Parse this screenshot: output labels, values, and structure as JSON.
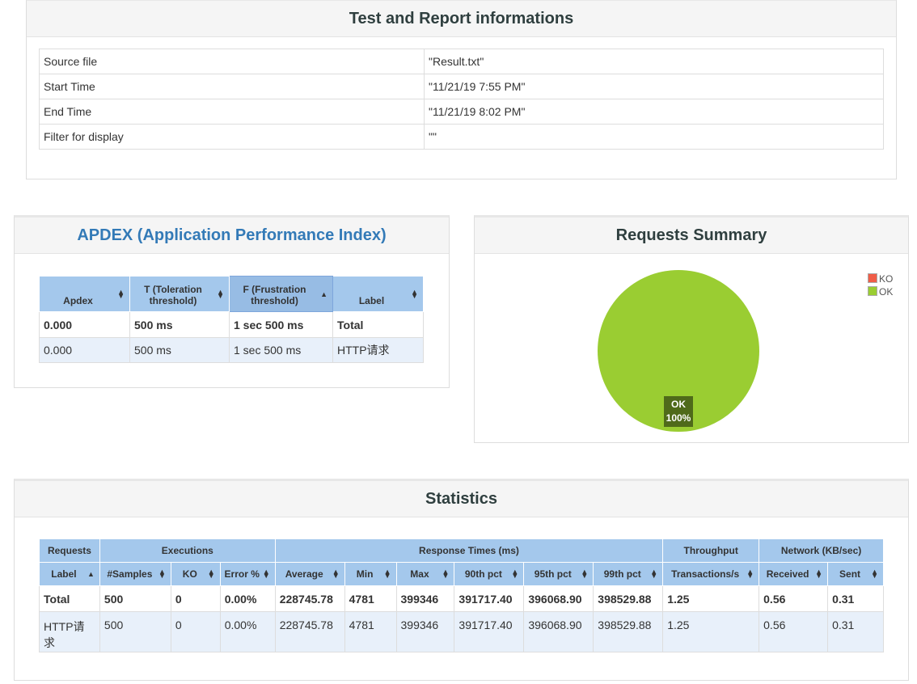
{
  "test_info": {
    "title": "Test and Report informations",
    "rows": [
      {
        "key": "Source file",
        "value": "\"Result.txt\""
      },
      {
        "key": "Start Time",
        "value": "\"11/21/19 7:55 PM\""
      },
      {
        "key": "End Time",
        "value": "\"11/21/19 8:02 PM\""
      },
      {
        "key": "Filter for display",
        "value": "\"\""
      }
    ]
  },
  "apdex": {
    "title": "APDEX (Application Performance Index)",
    "headers": [
      "Apdex",
      "T (Toleration threshold)",
      "F (Frustration threshold)",
      "Label"
    ],
    "total": {
      "apdex": "0.000",
      "t": "500 ms",
      "f": "1 sec 500 ms",
      "label": "Total"
    },
    "rows": [
      {
        "apdex": "0.000",
        "t": "500 ms",
        "f": "1 sec 500 ms",
        "label": "HTTP请求"
      }
    ]
  },
  "requests_summary": {
    "title": "Requests Summary",
    "legend": [
      {
        "label": "KO",
        "color": "#f05d48"
      },
      {
        "label": "OK",
        "color": "#9acd32"
      }
    ],
    "slice_label": "OK",
    "slice_pct": "100%"
  },
  "chart_data": {
    "type": "pie",
    "title": "Requests Summary",
    "slices": [
      {
        "label": "KO",
        "value": 0,
        "color": "#f05d48"
      },
      {
        "label": "OK",
        "value": 100,
        "color": "#9acd32"
      }
    ],
    "legend": "top-right"
  },
  "statistics": {
    "title": "Statistics",
    "groups": [
      "Requests",
      "Executions",
      "Response Times (ms)",
      "Throughput",
      "Network (KB/sec)"
    ],
    "columns": [
      "Label",
      "#Samples",
      "KO",
      "Error %",
      "Average",
      "Min",
      "Max",
      "90th pct",
      "95th pct",
      "99th pct",
      "Transactions/s",
      "Received",
      "Sent"
    ],
    "total": [
      "Total",
      "500",
      "0",
      "0.00%",
      "228745.78",
      "4781",
      "399346",
      "391717.40",
      "396068.90",
      "398529.88",
      "1.25",
      "0.56",
      "0.31"
    ],
    "rows": [
      [
        "HTTP请求",
        "500",
        "0",
        "0.00%",
        "228745.78",
        "4781",
        "399346",
        "391717.40",
        "396068.90",
        "398529.88",
        "1.25",
        "0.56",
        "0.31"
      ]
    ]
  },
  "colors": {
    "header_blue": "#a4c8ec",
    "row_blue": "#e8f0fa",
    "ok_green": "#9acd32",
    "ko_red": "#f05d48",
    "apdex_title": "#337ab7"
  }
}
